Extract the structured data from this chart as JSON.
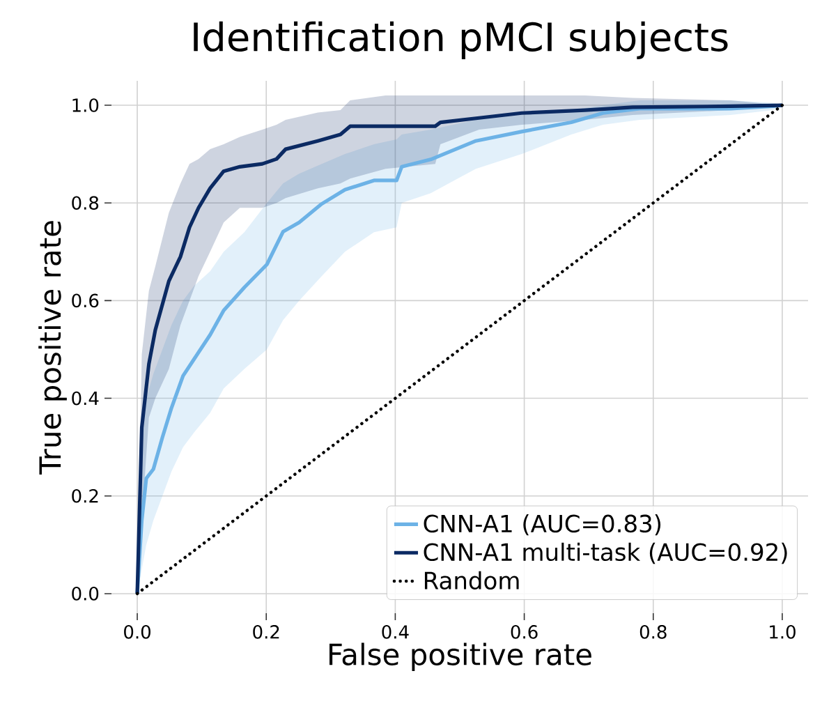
{
  "chart_data": {
    "type": "line",
    "title": "Identification pMCI subjects",
    "xlabel": "False positive rate",
    "ylabel": "True positive rate",
    "xlim": [
      -0.04,
      1.04
    ],
    "ylim": [
      -0.04,
      1.05
    ],
    "xticks": [
      {
        "value": 0,
        "label": "0.0"
      },
      {
        "value": 0.2,
        "label": "0.2"
      },
      {
        "value": 0.4,
        "label": "0.4"
      },
      {
        "value": 0.6,
        "label": "0.6"
      },
      {
        "value": 0.8,
        "label": "0.8"
      },
      {
        "value": 1,
        "label": "1.0"
      }
    ],
    "yticks": [
      {
        "value": 0,
        "label": "0.0"
      },
      {
        "value": 0.2,
        "label": "0.2"
      },
      {
        "value": 0.4,
        "label": "0.4"
      },
      {
        "value": 0.6,
        "label": "0.6"
      },
      {
        "value": 0.8,
        "label": "0.8"
      },
      {
        "value": 1,
        "label": "1.0"
      }
    ],
    "grid": true,
    "legend": "bottom right",
    "series": [
      {
        "name": "CNN-A1 (AUC=0.83)",
        "color": "#6cb2e6",
        "line_style": "solid",
        "x": [
          0,
          0.007,
          0.014,
          0.025,
          0.039,
          0.053,
          0.071,
          0.088,
          0.113,
          0.134,
          0.166,
          0.201,
          0.226,
          0.251,
          0.286,
          0.322,
          0.367,
          0.402,
          0.41,
          0.455,
          0.525,
          0.596,
          0.673,
          0.722,
          0.779,
          0.92,
          0.986,
          1
        ],
        "values": [
          0,
          0.15,
          0.236,
          0.255,
          0.32,
          0.38,
          0.446,
          0.48,
          0.53,
          0.58,
          0.627,
          0.674,
          0.741,
          0.76,
          0.798,
          0.827,
          0.846,
          0.846,
          0.874,
          0.889,
          0.927,
          0.946,
          0.965,
          0.984,
          0.993,
          0.993,
          0.998,
          1
        ],
        "upper": [
          0,
          0.3,
          0.4,
          0.45,
          0.5,
          0.55,
          0.6,
          0.63,
          0.66,
          0.7,
          0.74,
          0.8,
          0.84,
          0.86,
          0.88,
          0.9,
          0.92,
          0.93,
          0.94,
          0.95,
          0.97,
          0.98,
          0.99,
          1,
          1.01,
          1.01,
          1.005,
          1
        ],
        "lower": [
          0,
          0.05,
          0.1,
          0.15,
          0.2,
          0.25,
          0.3,
          0.33,
          0.37,
          0.42,
          0.46,
          0.5,
          0.56,
          0.6,
          0.65,
          0.7,
          0.74,
          0.75,
          0.8,
          0.82,
          0.87,
          0.9,
          0.94,
          0.96,
          0.97,
          0.98,
          0.99,
          1
        ]
      },
      {
        "name": "CNN-A1 multi-task (AUC=0.92)",
        "color": "#0b2a63",
        "line_style": "solid",
        "x": [
          0,
          0.007,
          0.018,
          0.028,
          0.049,
          0.067,
          0.081,
          0.095,
          0.113,
          0.134,
          0.159,
          0.194,
          0.216,
          0.23,
          0.28,
          0.315,
          0.33,
          0.385,
          0.462,
          0.47,
          0.53,
          0.596,
          0.694,
          0.768,
          0.92,
          1
        ],
        "values": [
          0,
          0.34,
          0.47,
          0.54,
          0.64,
          0.69,
          0.75,
          0.79,
          0.83,
          0.865,
          0.874,
          0.88,
          0.89,
          0.91,
          0.927,
          0.94,
          0.957,
          0.957,
          0.957,
          0.965,
          0.974,
          0.984,
          0.99,
          0.996,
          0.998,
          1
        ],
        "upper": [
          0,
          0.49,
          0.62,
          0.67,
          0.78,
          0.84,
          0.88,
          0.89,
          0.91,
          0.92,
          0.935,
          0.95,
          0.96,
          0.97,
          0.985,
          0.99,
          1.01,
          1.02,
          1.02,
          1.02,
          1.02,
          1.02,
          1.02,
          1.015,
          1.01,
          1
        ],
        "lower": [
          0,
          0.15,
          0.36,
          0.4,
          0.46,
          0.55,
          0.6,
          0.65,
          0.7,
          0.76,
          0.79,
          0.79,
          0.8,
          0.81,
          0.83,
          0.84,
          0.85,
          0.87,
          0.88,
          0.92,
          0.95,
          0.96,
          0.97,
          0.98,
          0.99,
          1
        ]
      },
      {
        "name": "Random",
        "color": "#000000",
        "line_style": "dotted",
        "x": [
          0,
          1
        ],
        "values": [
          0,
          1
        ]
      }
    ]
  }
}
